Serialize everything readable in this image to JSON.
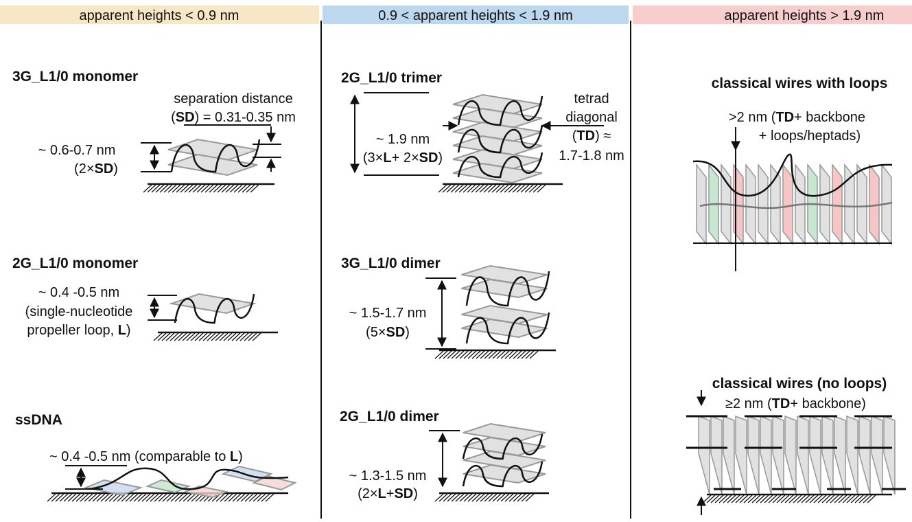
{
  "headers": [
    "apparent heights < 0.9 nm",
    "0.9 < apparent heights < 1.9 nm",
    "apparent heights > 1.9 nm"
  ],
  "panels": [
    {
      "title": "3G_L1/0 monomer",
      "lines": [
        [
          "separation distance"
        ],
        [
          "(",
          {
            "text": "SD",
            "bold": true
          },
          ") = 0.31-0.35 nm"
        ],
        [
          "~ 0.6-0.7 nm"
        ],
        [
          "(2×",
          {
            "text": "SD",
            "bold": true
          },
          ")"
        ]
      ]
    },
    {
      "title": "2G_L1/0 monomer",
      "lines": [
        [
          "~ 0.4 -0.5 nm"
        ],
        [
          "(single-nucleotide"
        ],
        [
          "propeller loop, ",
          {
            "text": "L",
            "bold": true
          },
          ")"
        ]
      ]
    },
    {
      "title": "ssDNA",
      "lines": [
        [
          "~ 0.4 -0.5 nm (comparable to ",
          {
            "text": "L",
            "bold": true
          },
          ")"
        ]
      ]
    },
    {
      "title": "2G_L1/0 trimer",
      "lines": [
        [
          "tetrad"
        ],
        [
          "diagonal"
        ],
        [
          "(",
          {
            "text": "TD",
            "bold": true
          },
          ") ≈"
        ],
        [
          "1.7-1.8 nm"
        ],
        [
          "~ 1.9 nm"
        ],
        [
          "(3×",
          {
            "text": "L",
            "bold": true
          },
          "+ 2×",
          {
            "text": "SD",
            "bold": true
          },
          ")"
        ]
      ]
    },
    {
      "title": "3G_L1/0 dimer",
      "lines": [
        [
          "~ 1.5-1.7 nm"
        ],
        [
          "(5×",
          {
            "text": "SD",
            "bold": true
          },
          ")"
        ]
      ]
    },
    {
      "title": "2G_L1/0 dimer",
      "lines": [
        [
          "~ 1.3-1.5 nm"
        ],
        [
          "(2×",
          {
            "text": "L",
            "bold": true
          },
          "+",
          {
            "text": "SD",
            "bold": true
          },
          ")"
        ]
      ]
    },
    {
      "title": "classical wires with loops",
      "lines": [
        [
          ">2 nm (",
          {
            "text": "TD",
            "bold": true
          },
          "+ backbone"
        ],
        [
          "+ loops/heptads)"
        ]
      ]
    },
    {
      "title": "classical wires (no loops)",
      "lines": [
        [
          "≥2 nm (",
          {
            "text": "TD",
            "bold": true
          },
          "+ backbone)"
        ]
      ]
    }
  ]
}
